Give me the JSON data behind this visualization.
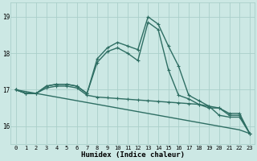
{
  "xlabel": "Humidex (Indice chaleur)",
  "x": [
    0,
    1,
    2,
    3,
    4,
    5,
    6,
    7,
    8,
    9,
    10,
    11,
    12,
    13,
    14,
    15,
    16,
    17,
    18,
    19,
    20,
    21,
    22,
    23
  ],
  "line_main": [
    17.0,
    16.9,
    16.9,
    17.1,
    17.15,
    17.15,
    17.1,
    16.9,
    17.85,
    18.15,
    18.3,
    18.2,
    18.1,
    19.0,
    18.8,
    18.2,
    17.65,
    16.85,
    16.7,
    16.55,
    16.3,
    16.25,
    16.25,
    15.8
  ],
  "line_secondary": [
    17.0,
    16.9,
    16.9,
    17.1,
    17.15,
    17.15,
    17.1,
    16.9,
    17.75,
    18.05,
    18.15,
    18.0,
    17.8,
    18.85,
    18.65,
    17.55,
    16.85,
    16.75,
    16.6,
    16.5,
    16.5,
    16.3,
    16.3,
    15.8
  ],
  "line_flat1": [
    17.0,
    16.9,
    16.9,
    17.05,
    17.1,
    17.1,
    17.05,
    16.85,
    16.8,
    16.78,
    16.76,
    16.74,
    16.72,
    16.7,
    16.68,
    16.66,
    16.64,
    16.62,
    16.6,
    16.55,
    16.5,
    16.35,
    16.35,
    15.8
  ],
  "line_diagonal": [
    17.0,
    16.95,
    16.9,
    16.85,
    16.8,
    16.75,
    16.7,
    16.65,
    16.6,
    16.55,
    16.5,
    16.45,
    16.4,
    16.35,
    16.3,
    16.25,
    16.2,
    16.15,
    16.1,
    16.05,
    16.0,
    15.95,
    15.9,
    15.8
  ],
  "bg_color": "#cce8e4",
  "grid_color": "#aacfca",
  "line_color": "#2e6e63",
  "ylim": [
    15.5,
    19.4
  ],
  "xlim": [
    -0.5,
    23.5
  ],
  "yticks": [
    16,
    17,
    18,
    19
  ],
  "xticks": [
    0,
    1,
    2,
    3,
    4,
    5,
    6,
    7,
    8,
    9,
    10,
    11,
    12,
    13,
    14,
    15,
    16,
    17,
    18,
    19,
    20,
    21,
    22,
    23
  ],
  "markersize": 3,
  "linewidth": 1.0
}
